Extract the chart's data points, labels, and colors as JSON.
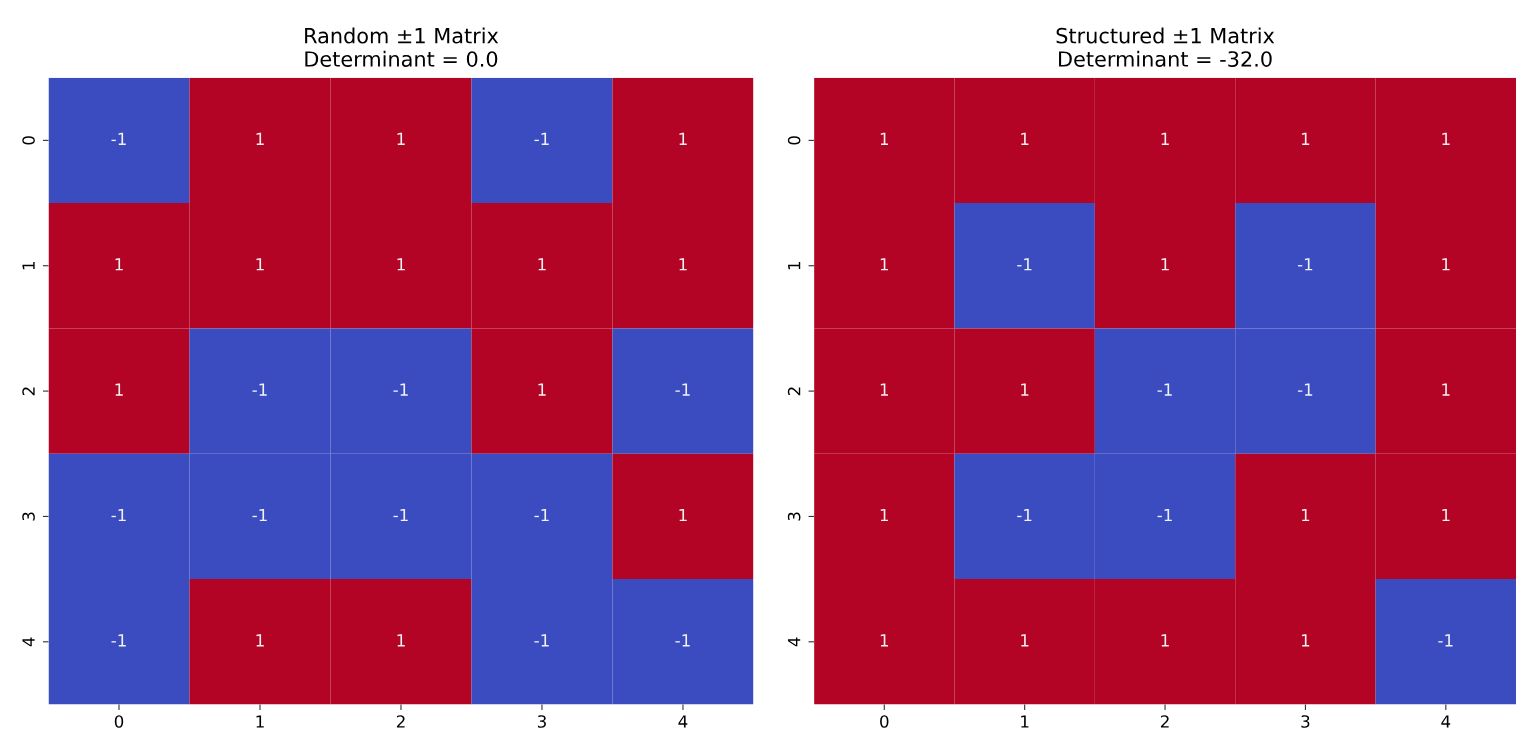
{
  "chart_data": [
    {
      "type": "heatmap",
      "title": "Random ±1 Matrix\nDeterminant = 0.0",
      "categories": [
        "0",
        "1",
        "2",
        "3",
        "4"
      ],
      "y_categories": [
        "0",
        "1",
        "2",
        "3",
        "4"
      ],
      "colors": [
        "#3b4cc0",
        "#b40426"
      ],
      "data_labels": true,
      "cells": [
        [
          -1,
          1,
          1,
          -1,
          1
        ],
        [
          1,
          1,
          1,
          1,
          1
        ],
        [
          1,
          -1,
          -1,
          1,
          -1
        ],
        [
          -1,
          -1,
          -1,
          -1,
          1
        ],
        [
          -1,
          1,
          1,
          -1,
          -1
        ]
      ]
    },
    {
      "type": "heatmap",
      "title": "Structured ±1 Matrix\nDeterminant = -32.0",
      "categories": [
        "0",
        "1",
        "2",
        "3",
        "4"
      ],
      "y_categories": [
        "0",
        "1",
        "2",
        "3",
        "4"
      ],
      "colors": [
        "#3b4cc0",
        "#b40426"
      ],
      "data_labels": true,
      "cells": [
        [
          1,
          1,
          1,
          1,
          1
        ],
        [
          1,
          -1,
          1,
          -1,
          1
        ],
        [
          1,
          1,
          -1,
          -1,
          1
        ],
        [
          1,
          -1,
          -1,
          1,
          1
        ],
        [
          1,
          1,
          1,
          1,
          -1
        ]
      ]
    }
  ]
}
